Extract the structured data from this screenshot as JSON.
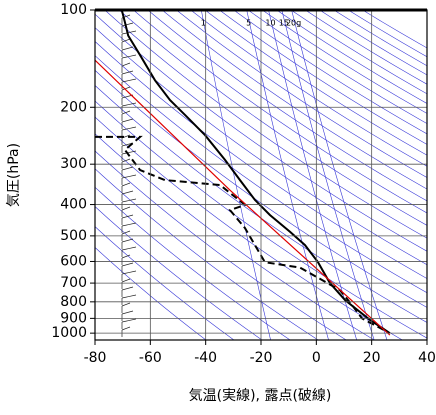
{
  "chart_data": {
    "type": "line",
    "xlabel": "気温(実線), 露点(破線)",
    "ylabel": "気圧(hPa)",
    "xlim": [
      -80,
      40
    ],
    "xticks": [
      -80,
      -60,
      -40,
      -20,
      0,
      20,
      40
    ],
    "ylim": [
      100,
      1050
    ],
    "yticks": [
      100,
      200,
      300,
      400,
      500,
      600,
      700,
      800,
      900,
      1000
    ],
    "log_y": true,
    "grid": true,
    "mixing_ratios": [
      1,
      5,
      10,
      15,
      {
        "value": 20,
        "label": "20g"
      }
    ],
    "series": [
      {
        "color": "#000000",
        "dashed": false,
        "x": [
          -70.2,
          -69.2,
          -68,
          -63.7,
          -58.3,
          -52.9,
          -47.5,
          -40.2,
          -33,
          -27.6,
          -22.2,
          -16.8,
          -9.5,
          -4.1,
          0.6,
          4.9,
          10.4,
          19.4,
          26.6
        ],
        "y": [
          101,
          109,
          120,
          138,
          165,
          190,
          211,
          244,
          291,
          336,
          387,
          431,
          486,
          534,
          603,
          700,
          790,
          910,
          1000
        ]
      },
      {
        "color": "#000000",
        "dashed": true,
        "x": [
          -80,
          -63.7,
          -69.2,
          -63.7,
          -54.7,
          -34.8,
          -25.8,
          -31.2,
          -25.8,
          -18.6,
          -5.9,
          8.5,
          12.9,
          16.5,
          24.8
        ],
        "y": [
          247,
          247,
          271,
          313,
          336,
          348,
          401,
          416,
          473,
          603,
          627,
          736,
          818,
          900,
          981
        ]
      },
      {
        "color": "#e00000",
        "dashed": false,
        "x": [
          -80,
          -31.2,
          26.6
        ],
        "y": [
          143,
          361,
          1014
        ]
      }
    ]
  }
}
